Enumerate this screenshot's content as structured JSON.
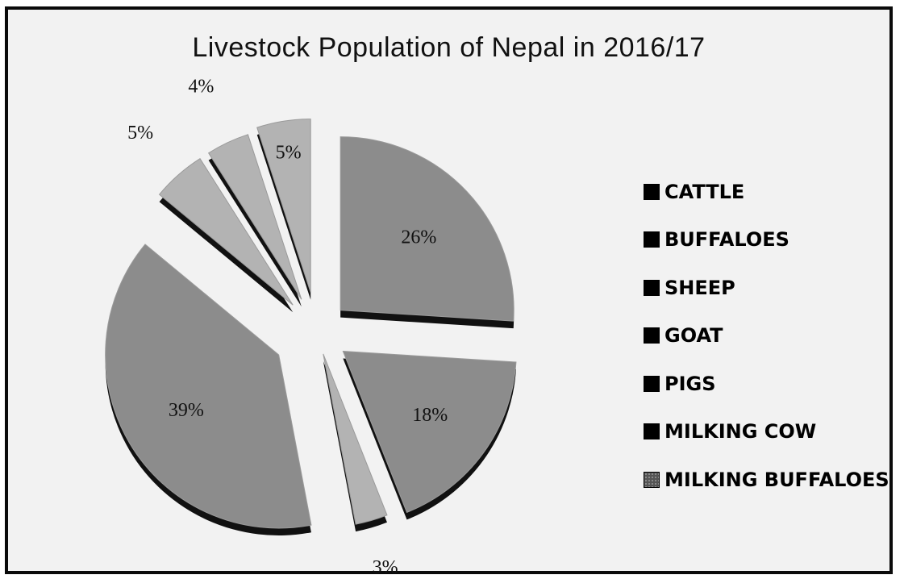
{
  "chart_data": {
    "type": "pie",
    "title": "Livestock Population of Nepal in 2016/17",
    "legend_position": "right",
    "slices": [
      {
        "name": "CATTLE",
        "value": 26,
        "label": "26%"
      },
      {
        "name": "BUFFALOES",
        "value": 18,
        "label": "18%"
      },
      {
        "name": "SHEEP",
        "value": 3,
        "label": "3%"
      },
      {
        "name": "GOAT",
        "value": 39,
        "label": "39%"
      },
      {
        "name": "PIGS",
        "value": 5,
        "label": "5%"
      },
      {
        "name": "MILKING COW",
        "value": 4,
        "label": "4%"
      },
      {
        "name": "MILKING BUFFALOES",
        "value": 5,
        "label": "5%"
      }
    ],
    "colors": {
      "slice_fill": "#8c8c8c",
      "slice_fill_light": "#b3b3b3",
      "slice_edge": "#111111",
      "frame": "#0a0a0a",
      "background": "#f2f2f2"
    }
  }
}
